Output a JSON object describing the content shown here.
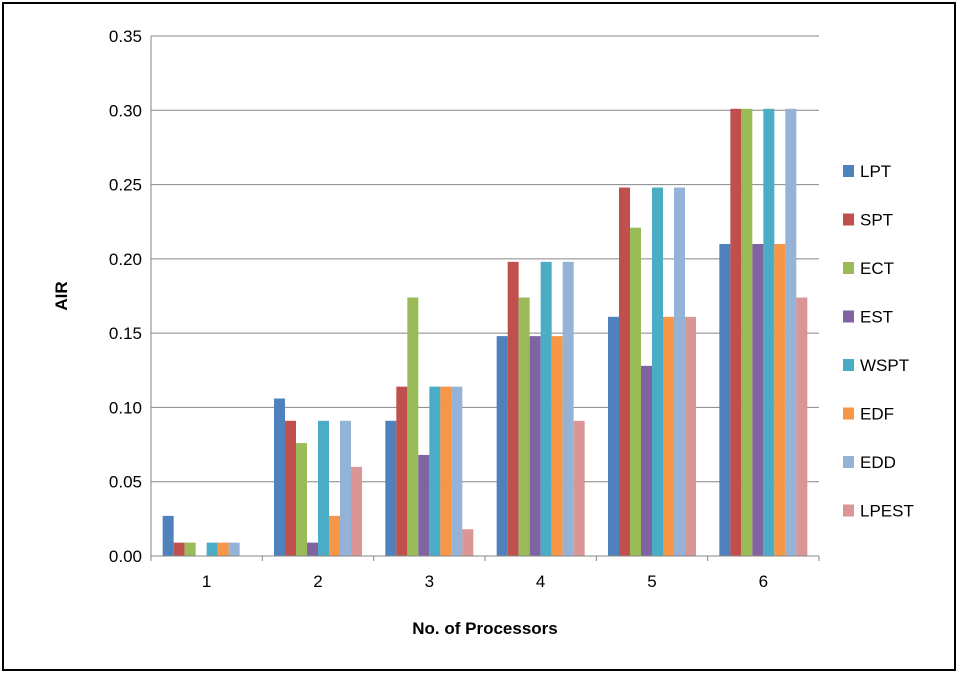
{
  "chart_data": {
    "type": "bar",
    "title": "",
    "xlabel": "No. of Processors",
    "ylabel": "AIR",
    "categories": [
      "1",
      "2",
      "3",
      "4",
      "5",
      "6"
    ],
    "ylim": [
      0,
      0.35
    ],
    "yticks": [
      "0.00",
      "0.05",
      "0.10",
      "0.15",
      "0.20",
      "0.25",
      "0.30",
      "0.35"
    ],
    "grid": "horizontal",
    "legend_position": "right",
    "series": [
      {
        "name": "LPT",
        "color": "#4F81BD",
        "values": [
          0.027,
          0.106,
          0.091,
          0.148,
          0.161,
          0.21
        ]
      },
      {
        "name": "SPT",
        "color": "#C0504D",
        "values": [
          0.009,
          0.091,
          0.114,
          0.198,
          0.248,
          0.301
        ]
      },
      {
        "name": "ECT",
        "color": "#9BBB59",
        "values": [
          0.009,
          0.076,
          0.174,
          0.174,
          0.221,
          0.301
        ]
      },
      {
        "name": "EST",
        "color": "#8064A2",
        "values": [
          0.0,
          0.009,
          0.068,
          0.148,
          0.128,
          0.21
        ]
      },
      {
        "name": "WSPT",
        "color": "#4BACC6",
        "values": [
          0.009,
          0.091,
          0.114,
          0.198,
          0.248,
          0.301
        ]
      },
      {
        "name": "EDF",
        "color": "#F79646",
        "values": [
          0.009,
          0.027,
          0.114,
          0.148,
          0.161,
          0.21
        ]
      },
      {
        "name": "EDD",
        "color": "#95B3D7",
        "values": [
          0.009,
          0.091,
          0.114,
          0.198,
          0.248,
          0.301
        ]
      },
      {
        "name": "LPEST",
        "color": "#D99694",
        "values": [
          0.0,
          0.06,
          0.018,
          0.091,
          0.161,
          0.174
        ]
      }
    ]
  }
}
